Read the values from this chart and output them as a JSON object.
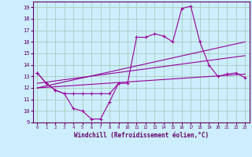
{
  "background_color": "#cceeff",
  "grid_color": "#aaccbb",
  "line_color": "#990099",
  "xlim": [
    -0.5,
    23.5
  ],
  "ylim": [
    9,
    19.5
  ],
  "yticks": [
    9,
    10,
    11,
    12,
    13,
    14,
    15,
    16,
    17,
    18,
    19
  ],
  "xticks": [
    0,
    1,
    2,
    3,
    4,
    5,
    6,
    7,
    8,
    9,
    10,
    11,
    12,
    13,
    14,
    15,
    16,
    17,
    18,
    19,
    20,
    21,
    22,
    23
  ],
  "xlabel": "Windchill (Refroidissement éolien,°C)",
  "series1_x": [
    0,
    1,
    2,
    3,
    4,
    5,
    6,
    7,
    8,
    9
  ],
  "series1_y": [
    13.3,
    12.4,
    11.8,
    11.5,
    10.2,
    10.0,
    9.3,
    9.3,
    10.8,
    12.4
  ],
  "series2_x": [
    0,
    1,
    2,
    3,
    4,
    5,
    6,
    7,
    8,
    9,
    10,
    11,
    12,
    13,
    14,
    15,
    16,
    17,
    18,
    19,
    20,
    21,
    22,
    23
  ],
  "series2_y": [
    13.3,
    12.4,
    11.8,
    11.5,
    11.5,
    11.5,
    11.5,
    11.5,
    11.5,
    12.4,
    12.4,
    16.4,
    16.4,
    16.7,
    16.5,
    16.0,
    18.9,
    19.1,
    16.0,
    14.0,
    13.0,
    13.2,
    13.3,
    12.9
  ],
  "series3_x": [
    0,
    23
  ],
  "series3_y": [
    12.0,
    13.2
  ],
  "series4_x": [
    0,
    23
  ],
  "series4_y": [
    12.4,
    14.8
  ],
  "series5_x": [
    0,
    23
  ],
  "series5_y": [
    12.0,
    16.0
  ]
}
